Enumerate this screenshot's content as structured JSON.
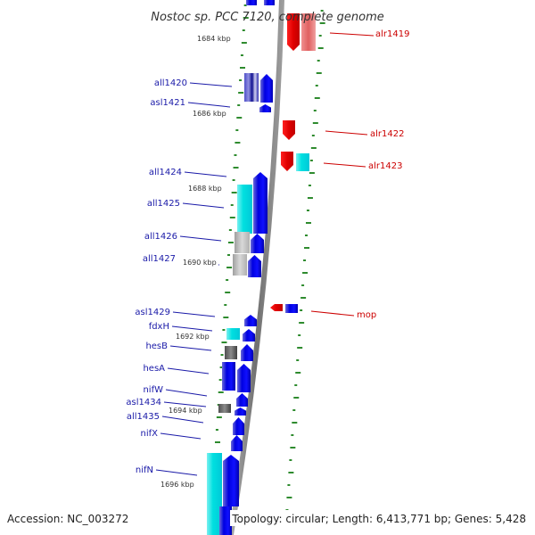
{
  "title": "Nostoc sp. PCC 7120, complete genome",
  "footer": {
    "accession": "Accession: NC_003272",
    "stats": "Topology: circular; Length: 6,413,771 bp; Genes: 5,428"
  },
  "colors": {
    "left_label": "#1a1aa8",
    "right_label": "#cc0000",
    "tick": "#2e8b2e",
    "backbone": "#8a8a8a"
  },
  "kbp_marks": [
    "1684 kbp",
    "1686 kbp",
    "1688 kbp",
    "1690 kbp",
    "1692 kbp",
    "1694 kbp",
    "1696 kbp"
  ],
  "left_genes": [
    "all1420",
    "asl1421",
    "all1424",
    "all1425",
    "all1426",
    "all1427",
    "asl1429",
    "fdxH",
    "hesB",
    "hesA",
    "nifW",
    "asl1434",
    "all1435",
    "nifX",
    "nifN"
  ],
  "right_genes": [
    "alr1419",
    "alr1422",
    "alr1423",
    "mop"
  ]
}
